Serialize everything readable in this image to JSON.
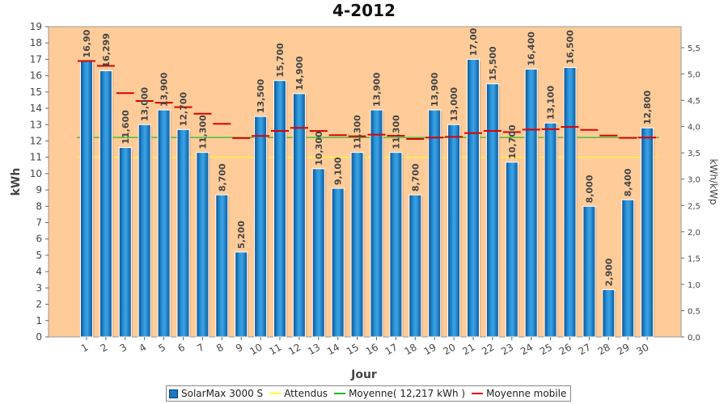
{
  "chart_data": {
    "type": "bar",
    "title": "4-2012",
    "xlabel": "Jour",
    "ylabel": "kWh",
    "y2label": "kWh/kWp",
    "ylim": [
      0,
      19
    ],
    "y2lim": [
      0,
      5.9
    ],
    "y2_ticks": [
      "0,0",
      "0,5",
      "1,0",
      "1,5",
      "2,0",
      "2,5",
      "3,0",
      "3,5",
      "4,0",
      "4,5",
      "5,0",
      "5,5"
    ],
    "categories": [
      "1",
      "2",
      "3",
      "4",
      "5",
      "6",
      "7",
      "8",
      "9",
      "10",
      "11",
      "12",
      "13",
      "14",
      "15",
      "16",
      "17",
      "18",
      "19",
      "20",
      "21",
      "22",
      "23",
      "24",
      "25",
      "26",
      "27",
      "28",
      "29",
      "30"
    ],
    "series": [
      {
        "name": "SolarMax 3000 S",
        "kind": "bar",
        "color": "#1a78c2",
        "values": [
          16.9,
          16.299,
          11.6,
          13.0,
          13.9,
          12.7,
          11.3,
          8.7,
          5.2,
          13.5,
          15.7,
          14.9,
          10.3,
          9.1,
          11.3,
          13.9,
          11.3,
          8.7,
          13.9,
          13.0,
          17.0,
          15.5,
          10.7,
          16.4,
          13.1,
          16.5,
          8.0,
          2.9,
          8.4,
          12.8
        ],
        "labels": [
          "16,90",
          "16,299",
          "11,600",
          "13,000",
          "13,900",
          "12,700",
          "11,300",
          "8,700",
          "5,200",
          "13,500",
          "15,700",
          "14,900",
          "10,300",
          "9,100",
          "11,300",
          "13,900",
          "11,300",
          "8,700",
          "13,900",
          "13,000",
          "17,00",
          "15,500",
          "10,700",
          "16,400",
          "13,100",
          "16,500",
          "8,000",
          "2,900",
          "8,400",
          "12,800"
        ]
      },
      {
        "name": "Attendus",
        "kind": "hline",
        "color": "#ffff33",
        "value": 11.0
      },
      {
        "name": "Moyenne( 12,217 kWh )",
        "kind": "hline",
        "color": "#22bb22",
        "value": 12.217
      },
      {
        "name": "Moyenne mobile",
        "kind": "step",
        "color": "#dd0000",
        "values": [
          16.9,
          16.6,
          14.93,
          14.45,
          14.34,
          14.07,
          13.67,
          13.05,
          12.18,
          12.31,
          12.62,
          12.8,
          12.61,
          12.36,
          12.29,
          12.39,
          12.32,
          12.12,
          12.21,
          12.25,
          12.48,
          12.62,
          12.54,
          12.7,
          12.72,
          12.86,
          12.68,
          12.33,
          12.19,
          12.21
        ]
      }
    ],
    "grid": false,
    "legend_position": "bottom",
    "plot_background": "#ffcc99"
  }
}
